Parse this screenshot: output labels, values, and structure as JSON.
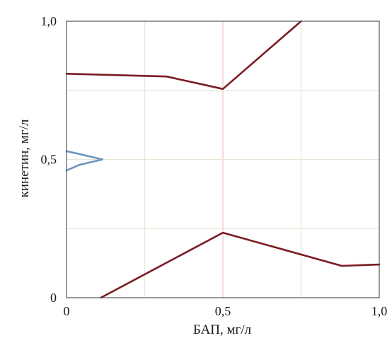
{
  "chart_data": {
    "type": "line",
    "xlabel": "БАП, мг/л",
    "ylabel": "кинетин, мг/л",
    "xlim": [
      0,
      1
    ],
    "ylim": [
      0,
      1
    ],
    "grid": true,
    "legend": "none",
    "x_ticks": [
      {
        "value": 0,
        "label": "0"
      },
      {
        "value": 0.5,
        "label": "0,5"
      },
      {
        "value": 1,
        "label": "1,0"
      }
    ],
    "y_ticks": [
      {
        "value": 0,
        "label": "0"
      },
      {
        "value": 0.5,
        "label": "0,5"
      },
      {
        "value": 1,
        "label": "1,0"
      }
    ],
    "x_grid": [
      0.25,
      0.5,
      0.75
    ],
    "y_grid": [
      0.25,
      0.5,
      0.75
    ],
    "x_grid_highlight": 0.5,
    "series": [
      {
        "color": "#7a1a22",
        "points": [
          [
            0,
            0.81
          ],
          [
            0.32,
            0.8
          ],
          [
            0.5,
            0.755
          ],
          [
            0.75,
            1.0
          ]
        ]
      },
      {
        "color": "#7a1a22",
        "points": [
          [
            0.11,
            0
          ],
          [
            0.5,
            0.235
          ],
          [
            0.88,
            0.115
          ],
          [
            1.0,
            0.12
          ]
        ]
      },
      {
        "color": "#6d93bf",
        "points": [
          [
            0,
            0.53
          ],
          [
            0.04,
            0.52
          ],
          [
            0.115,
            0.5
          ],
          [
            0.04,
            0.48
          ],
          [
            0,
            0.46
          ]
        ]
      }
    ],
    "colors": {
      "grid": "#e6e6d8",
      "grid_highlight": "#f2c2c8",
      "axis": "#555555",
      "line_dark": "#7a1a22",
      "line_blue": "#6d93bf"
    }
  }
}
